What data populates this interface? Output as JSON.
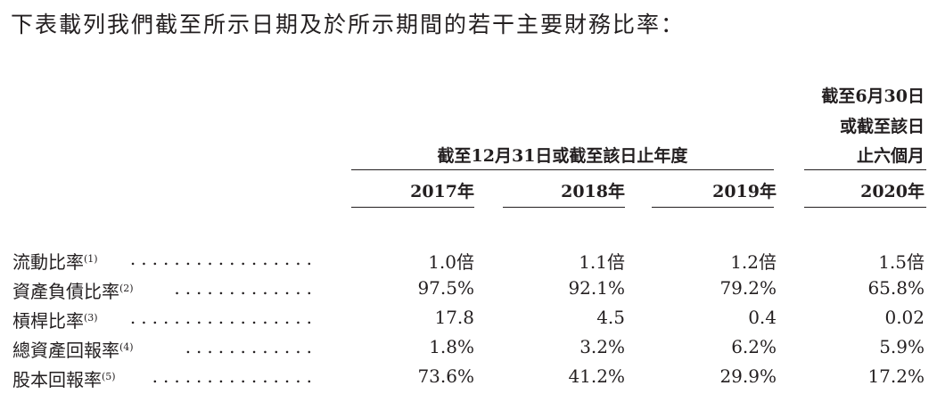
{
  "intro": "下表載列我們截至所示日期及於所示期間的若干主要財務比率：",
  "header": {
    "six_month_line1": "截至6月30日",
    "six_month_line2": "或截至該日",
    "six_month_line3": "止六個月",
    "year_group": "截至12月31日或截至該日止年度",
    "years": [
      "2017年",
      "2018年",
      "2019年",
      "2020年"
    ]
  },
  "rows": [
    {
      "label": "流動比率",
      "note": "(1)",
      "values": [
        "1.0倍",
        "1.1倍",
        "1.2倍",
        "1.5倍"
      ]
    },
    {
      "label": "資產負債比率",
      "note": "(2)",
      "values": [
        "97.5%",
        "92.1%",
        "79.2%",
        "65.8%"
      ]
    },
    {
      "label": "槓桿比率",
      "note": "(3)",
      "values": [
        "17.8",
        "4.5",
        "0.4",
        "0.02"
      ]
    },
    {
      "label": "總資產回報率",
      "note": "(4)",
      "values": [
        "1.8%",
        "3.2%",
        "6.2%",
        "5.9%"
      ]
    },
    {
      "label": "股本回報率",
      "note": "(5)",
      "values": [
        "73.6%",
        "41.2%",
        "29.9%",
        "17.2%"
      ]
    }
  ]
}
